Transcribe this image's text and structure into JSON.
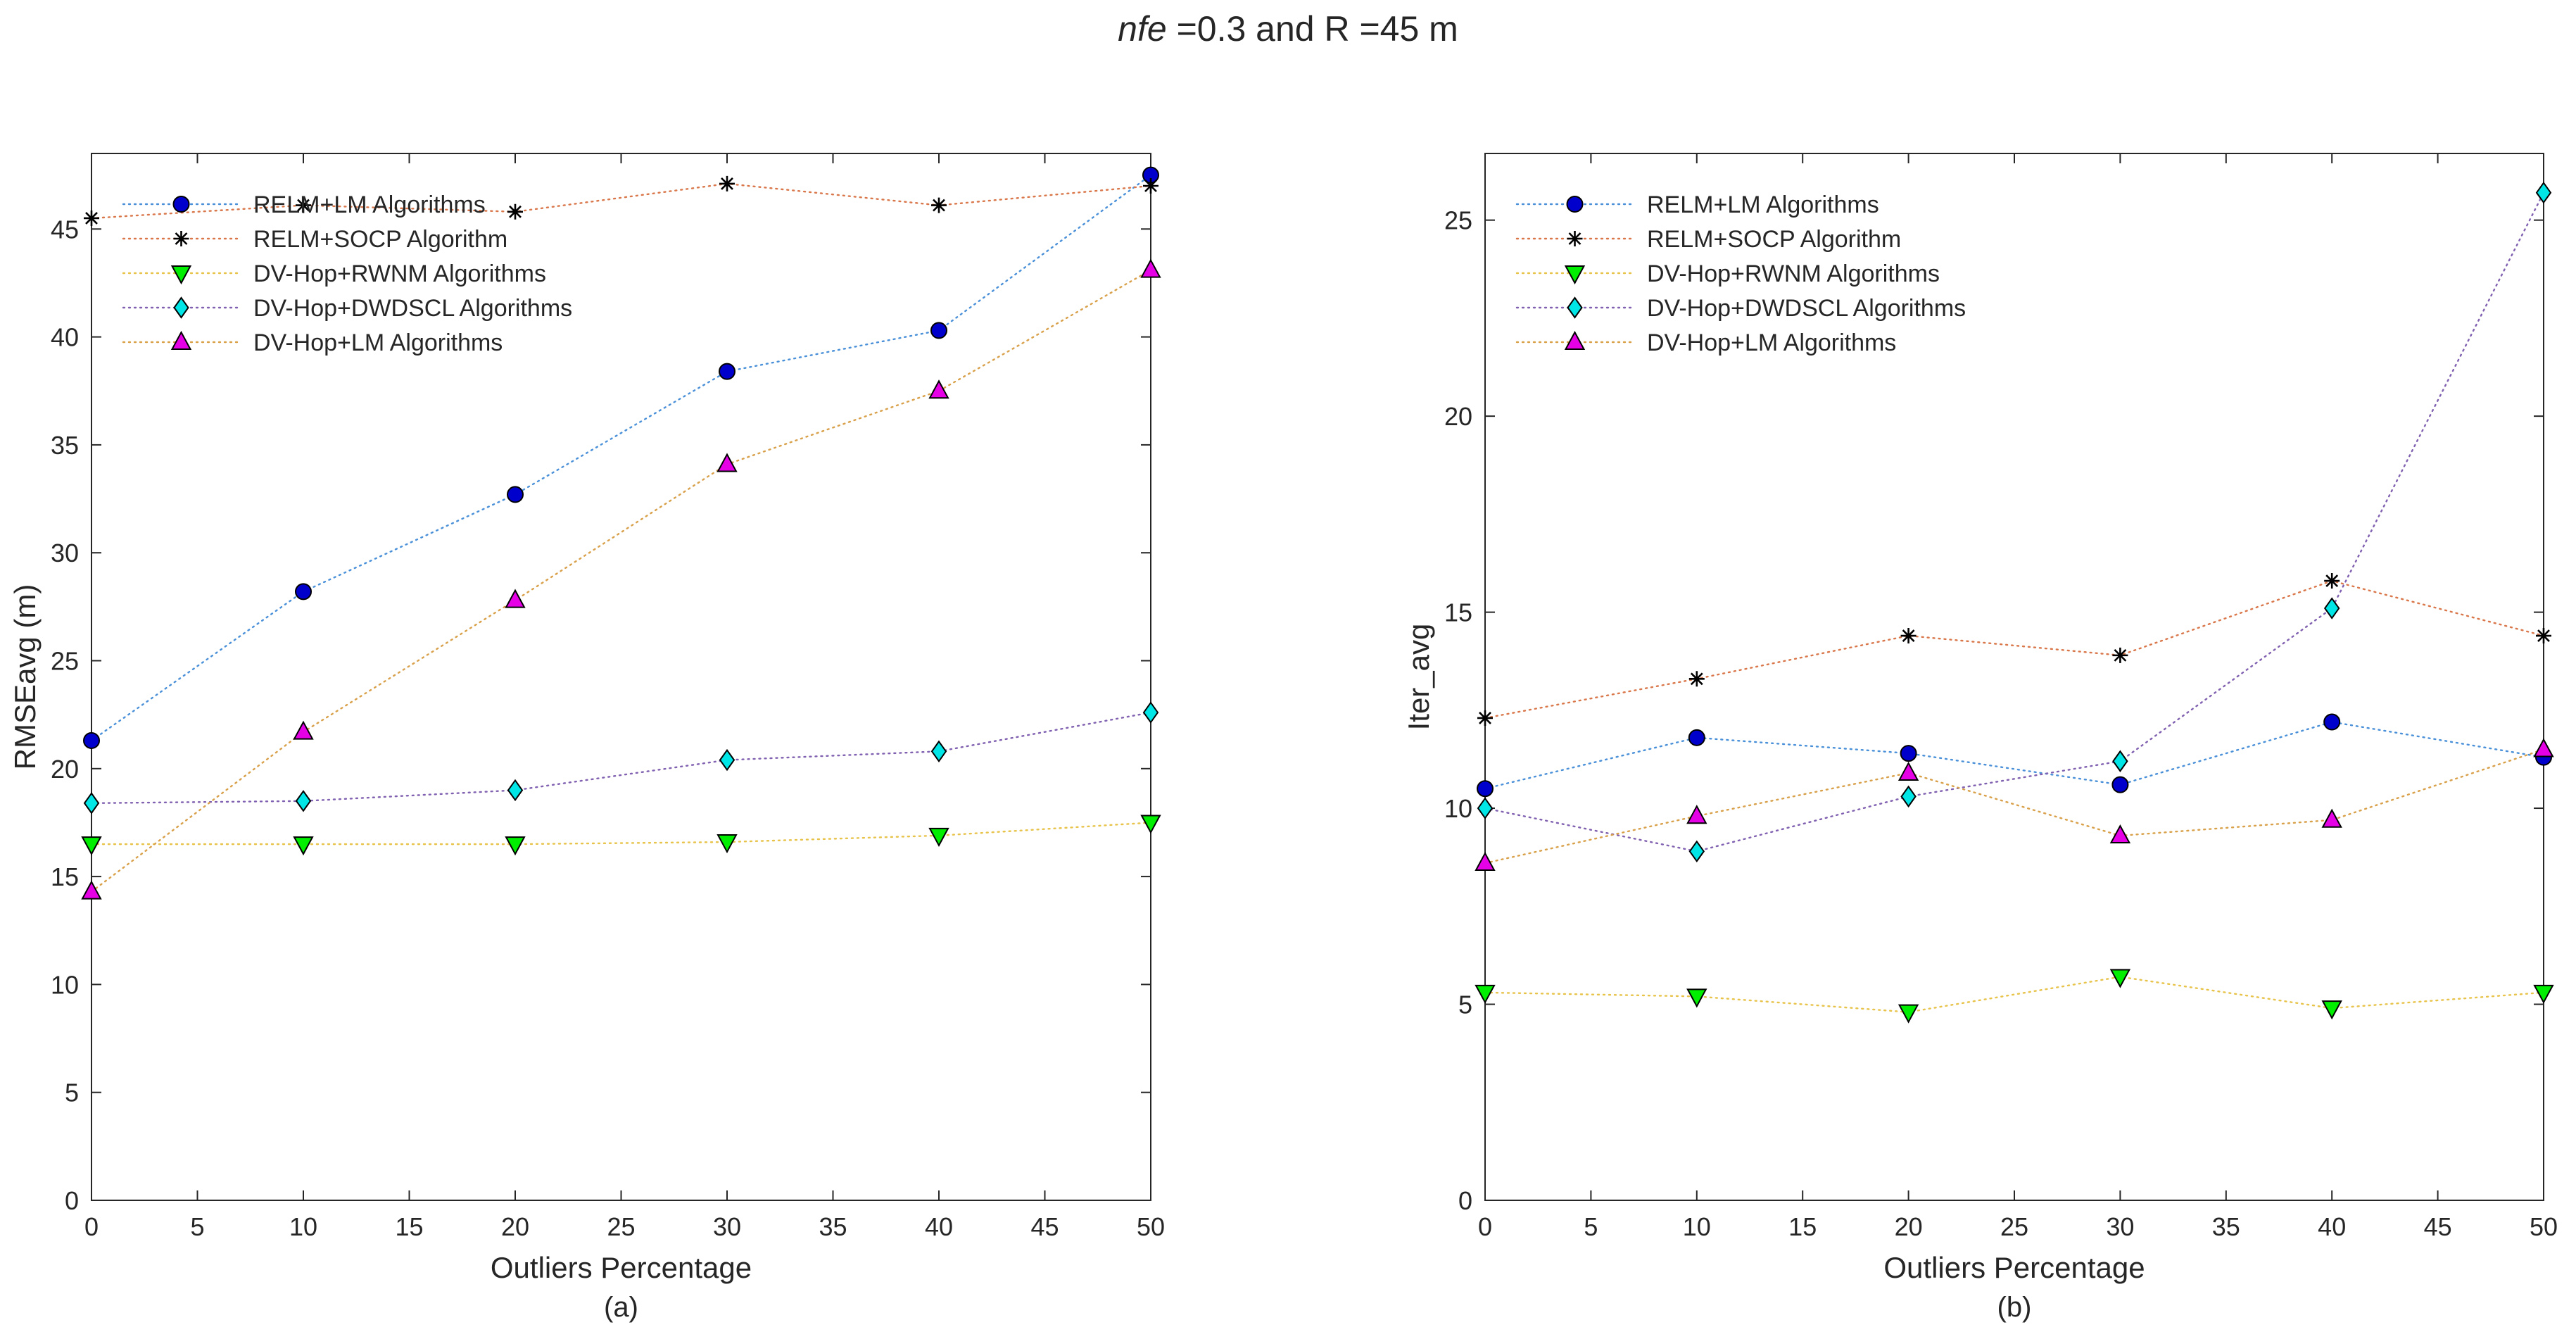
{
  "figure": {
    "title_prefix": "nfe",
    "title_rest": " =0.3  and  R =45 m"
  },
  "chart_data": [
    {
      "type": "line",
      "panel_label": "(a)",
      "xlabel": "Outliers Percentage",
      "ylabel": "RMSEavg (m)",
      "xlim": [
        0,
        50
      ],
      "ylim": [
        0,
        48.5
      ],
      "xticks": [
        0,
        5,
        10,
        15,
        20,
        25,
        30,
        35,
        40,
        45,
        50
      ],
      "yticks": [
        0,
        5,
        10,
        15,
        20,
        25,
        30,
        35,
        40,
        45
      ],
      "grid": false,
      "legend_position": "top-left",
      "x": [
        0,
        10,
        20,
        30,
        40,
        50
      ],
      "series": [
        {
          "name": "RELM+LM Algorithms",
          "values": [
            21.3,
            28.2,
            32.7,
            38.4,
            40.3,
            47.5
          ],
          "marker": "circle",
          "line_color": "#4a90d9",
          "marker_color": "#0000cc"
        },
        {
          "name": "RELM+SOCP Algorithm",
          "values": [
            45.5,
            46.1,
            45.8,
            47.1,
            46.1,
            47.0
          ],
          "marker": "asterisk",
          "line_color": "#d9764a",
          "marker_color": "#000000"
        },
        {
          "name": "DV-Hop+RWNM Algorithms",
          "values": [
            16.5,
            16.5,
            16.5,
            16.6,
            16.9,
            17.5
          ],
          "marker": "triangle-down",
          "line_color": "#e8c34a",
          "marker_color": "#00ee00"
        },
        {
          "name": "DV-Hop+DWDSCL Algorithms",
          "values": [
            18.4,
            18.5,
            19.0,
            20.4,
            20.8,
            22.6
          ],
          "marker": "diamond",
          "line_color": "#8060b0",
          "marker_color": "#00e5e5"
        },
        {
          "name": "DV-Hop+LM Algorithms",
          "values": [
            14.3,
            21.7,
            27.8,
            34.1,
            37.5,
            43.1
          ],
          "marker": "triangle-up",
          "line_color": "#d9a04a",
          "marker_color": "#e600e6"
        }
      ]
    },
    {
      "type": "line",
      "panel_label": "(b)",
      "xlabel": "Outliers Percentage",
      "ylabel": "Iter_avg",
      "xlim": [
        0,
        50
      ],
      "ylim": [
        0,
        26.7
      ],
      "xticks": [
        0,
        5,
        10,
        15,
        20,
        25,
        30,
        35,
        40,
        45,
        50
      ],
      "yticks": [
        0,
        5,
        10,
        15,
        20,
        25
      ],
      "grid": false,
      "legend_position": "top-left",
      "x": [
        0,
        10,
        20,
        30,
        40,
        50
      ],
      "series": [
        {
          "name": "RELM+LM Algorithms",
          "values": [
            10.5,
            11.8,
            11.4,
            10.6,
            12.2,
            11.3
          ],
          "marker": "circle",
          "line_color": "#4a90d9",
          "marker_color": "#0000cc"
        },
        {
          "name": "RELM+SOCP Algorithm",
          "values": [
            12.3,
            13.3,
            14.4,
            13.9,
            15.8,
            14.4
          ],
          "marker": "asterisk",
          "line_color": "#d9764a",
          "marker_color": "#000000"
        },
        {
          "name": "DV-Hop+RWNM Algorithms",
          "values": [
            5.3,
            5.2,
            4.8,
            5.7,
            4.9,
            5.3
          ],
          "marker": "triangle-down",
          "line_color": "#e8c34a",
          "marker_color": "#00ee00"
        },
        {
          "name": "DV-Hop+DWDSCL Algorithms",
          "values": [
            10.0,
            8.9,
            10.3,
            11.2,
            15.1,
            25.7
          ],
          "marker": "diamond",
          "line_color": "#8060b0",
          "marker_color": "#00e5e5"
        },
        {
          "name": "DV-Hop+LM Algorithms",
          "values": [
            8.6,
            9.8,
            10.9,
            9.3,
            9.7,
            11.5
          ],
          "marker": "triangle-up",
          "line_color": "#d9a04a",
          "marker_color": "#e600e6"
        }
      ]
    }
  ]
}
